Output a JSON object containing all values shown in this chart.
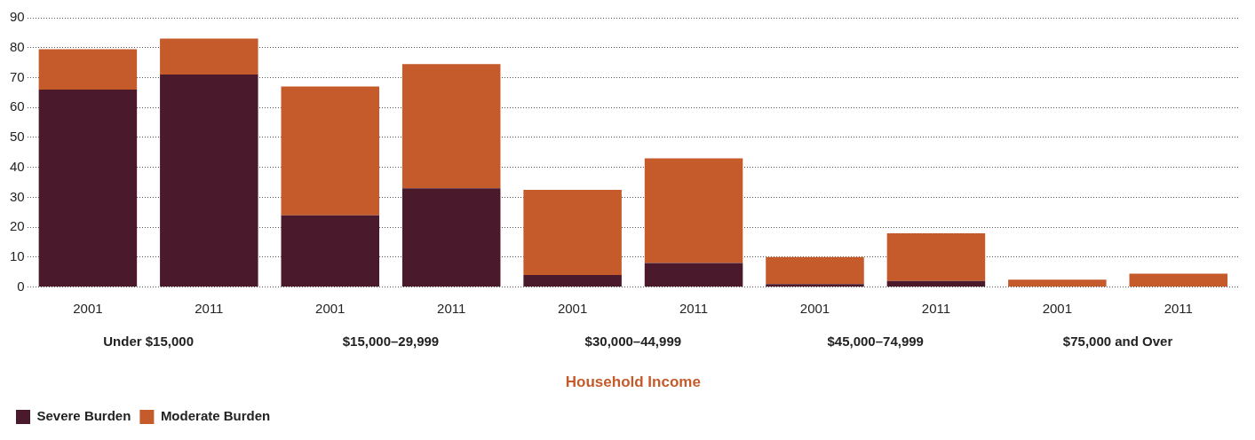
{
  "chart_data": {
    "type": "bar",
    "stacked": true,
    "xlabel": "Household Income",
    "categories": [
      "2001",
      "2011",
      "2001",
      "2011",
      "2001",
      "2011",
      "2001",
      "2011",
      "2001",
      "2011"
    ],
    "series": [
      {
        "name": "Severe Burden",
        "color": "#4a1a2c",
        "values": [
          66,
          71,
          24,
          33,
          4,
          8,
          1,
          2,
          0,
          0
        ]
      },
      {
        "name": "Moderate Burden",
        "color": "#c55a2b",
        "values": [
          13.5,
          12,
          43,
          41.5,
          28.5,
          35,
          9,
          16,
          2.5,
          4.5
        ]
      }
    ],
    "annotations": [
      "Under $15,000",
      "$15,000–29,999",
      "$30,000–44,999",
      "$45,000–74,999",
      "$75,000 and Over"
    ],
    "ylim": [
      0,
      90
    ],
    "yticks": [
      0,
      10,
      20,
      30,
      40,
      50,
      60,
      70,
      80,
      90
    ],
    "grid": "y",
    "legend": "bottom left"
  }
}
